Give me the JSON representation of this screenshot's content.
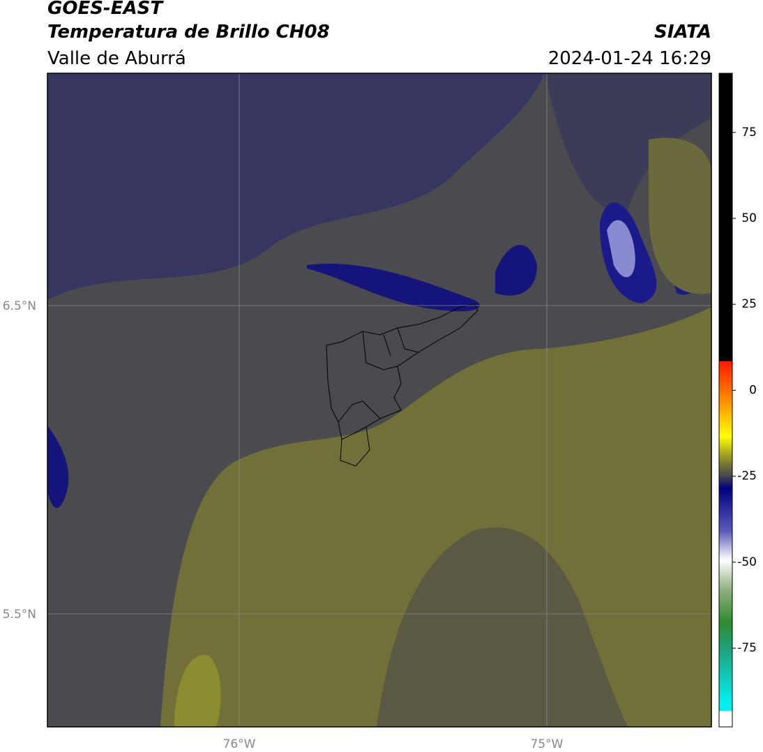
{
  "header": {
    "title": "GOES-EAST",
    "subtitle": "Temperatura de Brillo CH08",
    "region": "Valle de Aburrá",
    "source": "SIATA",
    "datetime": "2024-01-24 16:29"
  },
  "map": {
    "lat_labels": [
      "6.5°N",
      "5.5°N"
    ],
    "lon_labels": [
      "76°W",
      "75°W"
    ]
  },
  "colorbar": {
    "range": [
      -97.9,
      92.2
    ],
    "ticks": [
      75,
      50,
      25,
      0,
      -25,
      -50,
      -75
    ]
  }
}
